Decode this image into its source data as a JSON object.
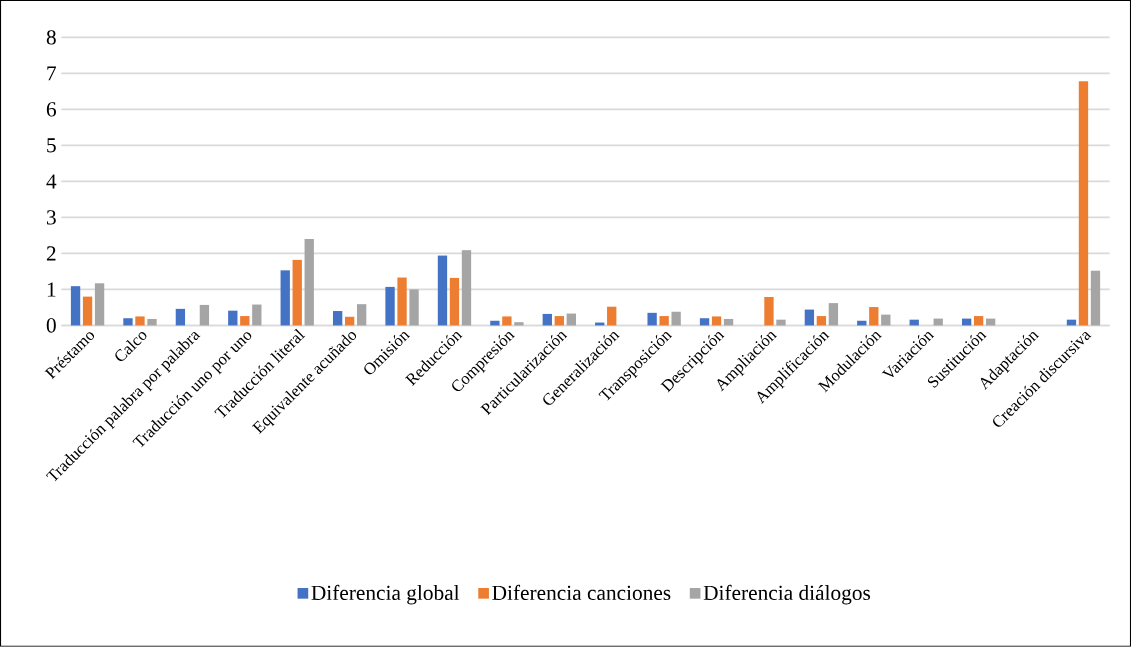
{
  "chart_data": {
    "type": "bar",
    "categories": [
      "Préstamo",
      "Calco",
      "Traducción palabra por palabra",
      "Traducción uno por uno",
      "Traducción literal",
      "Equivalente acuñado",
      "Omisión",
      "Reducción",
      "Compresión",
      "Particularización",
      "Generalización",
      "Transposición",
      "Descripción",
      "Ampliación",
      "Amplificación",
      "Modulación",
      "Variación",
      "Sustitución",
      "Adaptación",
      "Creación discursiva"
    ],
    "series": [
      {
        "name": "Diferencia global",
        "color": "#4472c4",
        "values": [
          1.09,
          0.2,
          0.46,
          0.41,
          1.53,
          0.4,
          1.07,
          1.94,
          0.13,
          0.32,
          0.08,
          0.35,
          0.2,
          null,
          0.44,
          0.13,
          0.16,
          0.19,
          null,
          0.16
        ]
      },
      {
        "name": "Diferencia canciones",
        "color": "#ed7d31",
        "values": [
          0.8,
          0.25,
          null,
          0.26,
          1.82,
          0.24,
          1.33,
          1.32,
          0.25,
          0.26,
          0.52,
          0.26,
          0.25,
          0.79,
          0.26,
          0.51,
          null,
          0.26,
          null,
          6.78
        ]
      },
      {
        "name": "Diferencia diálogos",
        "color": "#a5a5a5",
        "values": [
          1.17,
          0.18,
          0.57,
          0.58,
          2.4,
          0.59,
          1.0,
          2.09,
          0.09,
          0.33,
          null,
          0.38,
          0.18,
          0.16,
          0.62,
          0.3,
          0.19,
          0.19,
          null,
          1.52
        ]
      }
    ],
    "ylim": [
      0,
      8
    ],
    "yticks": [
      0,
      1,
      2,
      3,
      4,
      5,
      6,
      7,
      8
    ],
    "grid": "y",
    "legend": "bottom"
  }
}
